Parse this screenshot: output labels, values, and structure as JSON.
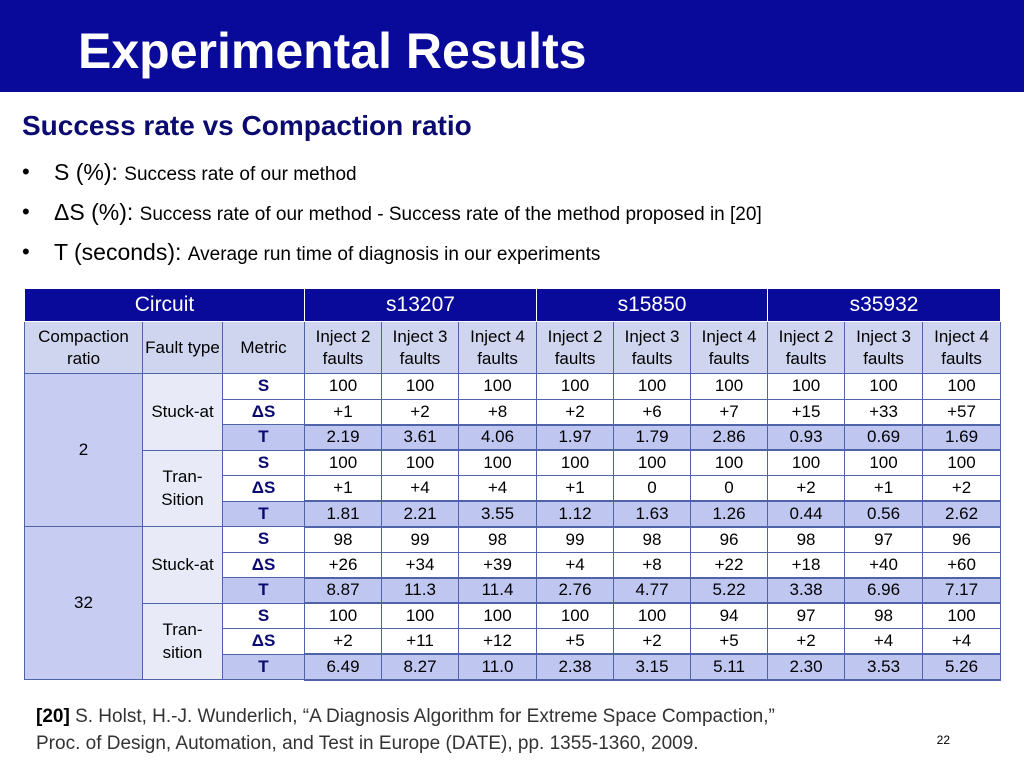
{
  "slide": {
    "title": "Experimental Results",
    "subtitle": "Success rate vs Compaction ratio",
    "page_number": "22"
  },
  "bullets": [
    {
      "term": "S (%): ",
      "desc": "Success rate of our method"
    },
    {
      "term": "ΔS (%): ",
      "desc": "Success rate of our method - Success rate of the method proposed in [20]"
    },
    {
      "term": "T (seconds): ",
      "desc": "Average run time of diagnosis in our experiments"
    }
  ],
  "table": {
    "circuit_label": "Circuit",
    "circuits": [
      "s13207",
      "s15850",
      "s35932"
    ],
    "compaction_header": "Compaction ratio",
    "fault_header": "Fault type",
    "metric_header": "Metric",
    "inject_headers": [
      "Inject 2 faults",
      "Inject 3 faults",
      "Inject 4 faults",
      "Inject 2 faults",
      "Inject 3 faults",
      "Inject 4 faults",
      "Inject 2 faults",
      "Inject 3 faults",
      "Inject 4 faults"
    ],
    "groups": [
      {
        "ratio": "2",
        "faults": [
          {
            "type": "Stuck-at",
            "rows": [
              {
                "metric": "S",
                "values": [
                  "100",
                  "100",
                  "100",
                  "100",
                  "100",
                  "100",
                  "100",
                  "100",
                  "100"
                ]
              },
              {
                "metric": "ΔS",
                "values": [
                  "+1",
                  "+2",
                  "+8",
                  "+2",
                  "+6",
                  "+7",
                  "+15",
                  "+33",
                  "+57"
                ]
              },
              {
                "metric": "T",
                "values": [
                  "2.19",
                  "3.61",
                  "4.06",
                  "1.97",
                  "1.79",
                  "2.86",
                  "0.93",
                  "0.69",
                  "1.69"
                ]
              }
            ]
          },
          {
            "type": "Tran-Sition",
            "rows": [
              {
                "metric": "S",
                "values": [
                  "100",
                  "100",
                  "100",
                  "100",
                  "100",
                  "100",
                  "100",
                  "100",
                  "100"
                ]
              },
              {
                "metric": "ΔS",
                "values": [
                  "+1",
                  "+4",
                  "+4",
                  "+1",
                  "0",
                  "0",
                  "+2",
                  "+1",
                  "+2"
                ]
              },
              {
                "metric": "T",
                "values": [
                  "1.81",
                  "2.21",
                  "3.55",
                  "1.12",
                  "1.63",
                  "1.26",
                  "0.44",
                  "0.56",
                  "2.62"
                ]
              }
            ]
          }
        ]
      },
      {
        "ratio": "32",
        "faults": [
          {
            "type": "Stuck-at",
            "rows": [
              {
                "metric": "S",
                "values": [
                  "98",
                  "99",
                  "98",
                  "99",
                  "98",
                  "96",
                  "98",
                  "97",
                  "96"
                ]
              },
              {
                "metric": "ΔS",
                "values": [
                  "+26",
                  "+34",
                  "+39",
                  "+4",
                  "+8",
                  "+22",
                  "+18",
                  "+40",
                  "+60"
                ]
              },
              {
                "metric": "T",
                "values": [
                  "8.87",
                  "11.3",
                  "11.4",
                  "2.76",
                  "4.77",
                  "5.22",
                  "3.38",
                  "6.96",
                  "7.17"
                ]
              }
            ]
          },
          {
            "type": "Tran-sition",
            "rows": [
              {
                "metric": "S",
                "values": [
                  "100",
                  "100",
                  "100",
                  "100",
                  "100",
                  "94",
                  "97",
                  "98",
                  "100"
                ]
              },
              {
                "metric": "ΔS",
                "values": [
                  "+2",
                  "+11",
                  "+12",
                  "+5",
                  "+2",
                  "+5",
                  "+2",
                  "+4",
                  "+4"
                ]
              },
              {
                "metric": "T",
                "values": [
                  "6.49",
                  "8.27",
                  "11.0",
                  "2.38",
                  "3.15",
                  "5.11",
                  "2.30",
                  "3.53",
                  "5.26"
                ]
              }
            ]
          }
        ]
      }
    ]
  },
  "reference": {
    "tag": "[20]",
    "line1": "S. Holst, H.-J. Wunderlich, “A Diagnosis Algorithm for Extreme Space Compaction,”",
    "line2": "Proc. of Design, Automation, and Test in Europe (DATE), pp. 1355-1360, 2009."
  }
}
